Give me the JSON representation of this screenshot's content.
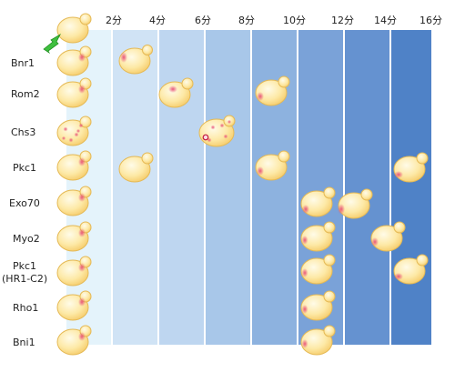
{
  "time_labels": [
    "2分",
    "4分",
    "6分",
    "8分",
    "10分",
    "12分",
    "14分",
    "16分"
  ],
  "rows": [
    {
      "label": "Bnr1",
      "label2": ""
    },
    {
      "label": "Rom2",
      "label2": ""
    },
    {
      "label": "Chs3",
      "label2": ""
    },
    {
      "label": "Pkc1",
      "label2": ""
    },
    {
      "label": "Exo70",
      "label2": ""
    },
    {
      "label": "Myo2",
      "label2": ""
    },
    {
      "label": "Pkc1",
      "label2": "(HR1-C2)"
    },
    {
      "label": "Rho1",
      "label2": ""
    },
    {
      "label": "Bni1",
      "label2": ""
    }
  ],
  "colors": {
    "cell_fill": "#fde7a0",
    "cell_stroke": "#e5b955",
    "marker": "#e9567a",
    "arrow": "#3fbf3f",
    "bands": [
      "#e4f3fb",
      "#d0e3f5",
      "#bed6f0",
      "#a8c7e9",
      "#8db2df",
      "#7aa2d8",
      "#6592d0",
      "#4f82c7"
    ]
  }
}
